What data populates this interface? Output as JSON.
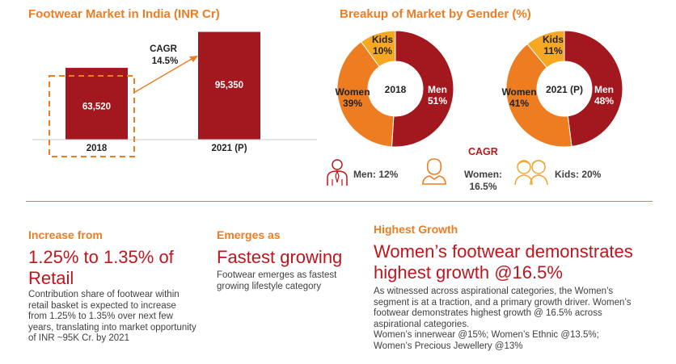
{
  "bar_chart": {
    "title": "Footwear Market in India (INR Cr)",
    "cagr_label": "CAGR",
    "cagr_value": "14.5%"
  },
  "gender": {
    "title": "Breakup of Market by Gender (%)",
    "cagr_title": "CAGR",
    "men_cagr": "Men: 12%",
    "women_cagr_line1": "Women:",
    "women_cagr_line2": "16.5%",
    "kids_cagr": "Kids: 20%"
  },
  "chart_data": [
    {
      "type": "bar",
      "title": "Footwear Market in India (INR Cr)",
      "categories": [
        "2018",
        "2021 (P)"
      ],
      "values": [
        63520,
        95350
      ],
      "data_labels": [
        "63,520",
        "95,350"
      ],
      "annotation": "CAGR 14.5%"
    },
    {
      "type": "pie",
      "title": "2018",
      "labels": [
        "Men",
        "Women",
        "Kids"
      ],
      "values": [
        51,
        39,
        10
      ],
      "data_labels": [
        "51%",
        "39%",
        "10%"
      ],
      "colors": [
        "#a3181f",
        "#ee7d22",
        "#f7a823"
      ]
    },
    {
      "type": "pie",
      "title": "2021 (P)",
      "labels": [
        "Men",
        "Women",
        "Kids"
      ],
      "values": [
        48,
        41,
        11
      ],
      "data_labels": [
        "48%",
        "41%",
        "11%"
      ],
      "colors": [
        "#a3181f",
        "#ee7d22",
        "#f7a823"
      ]
    }
  ],
  "sections": {
    "increase": {
      "heading": "Increase from",
      "big_line1": "1.25% to 1.35% of",
      "big_line2": "Retail",
      "body": [
        "Contribution share of footwear within",
        "retail basket is expected to increase",
        "from 1.25% to 1.35% over next few",
        "years, translating into market opportunity",
        "of INR ~95K Cr. by 2021"
      ]
    },
    "emerges": {
      "heading": "Emerges as",
      "big": "Fastest growing",
      "body": [
        "Footwear emerges as  fastest",
        "growing lifestyle  category"
      ]
    },
    "highest": {
      "heading": "Highest Growth",
      "big_line1": "Women’s footwear demonstrates",
      "big_line2": "highest growth @16.5%",
      "body": [
        "As witnessed across aspirational categories, the Women’s",
        "segment is at a traction, and a primary growth driver. Women’s",
        "footwear demonstrates highest growth @ 16.5% across",
        "aspirational categories.",
        "Women’s innerwear @15%; Women’s Ethnic @13.5%;",
        "Women’s Precious Jewellery @13%"
      ]
    }
  },
  "colors": {
    "accent_orange": "#ee7d22",
    "bar_red": "#a3181f",
    "text_red": "#c0151c",
    "kids_yellow": "#f7a823"
  },
  "icons": {
    "men": "man-icon",
    "women": "woman-icon",
    "kids": "kids-icon"
  }
}
